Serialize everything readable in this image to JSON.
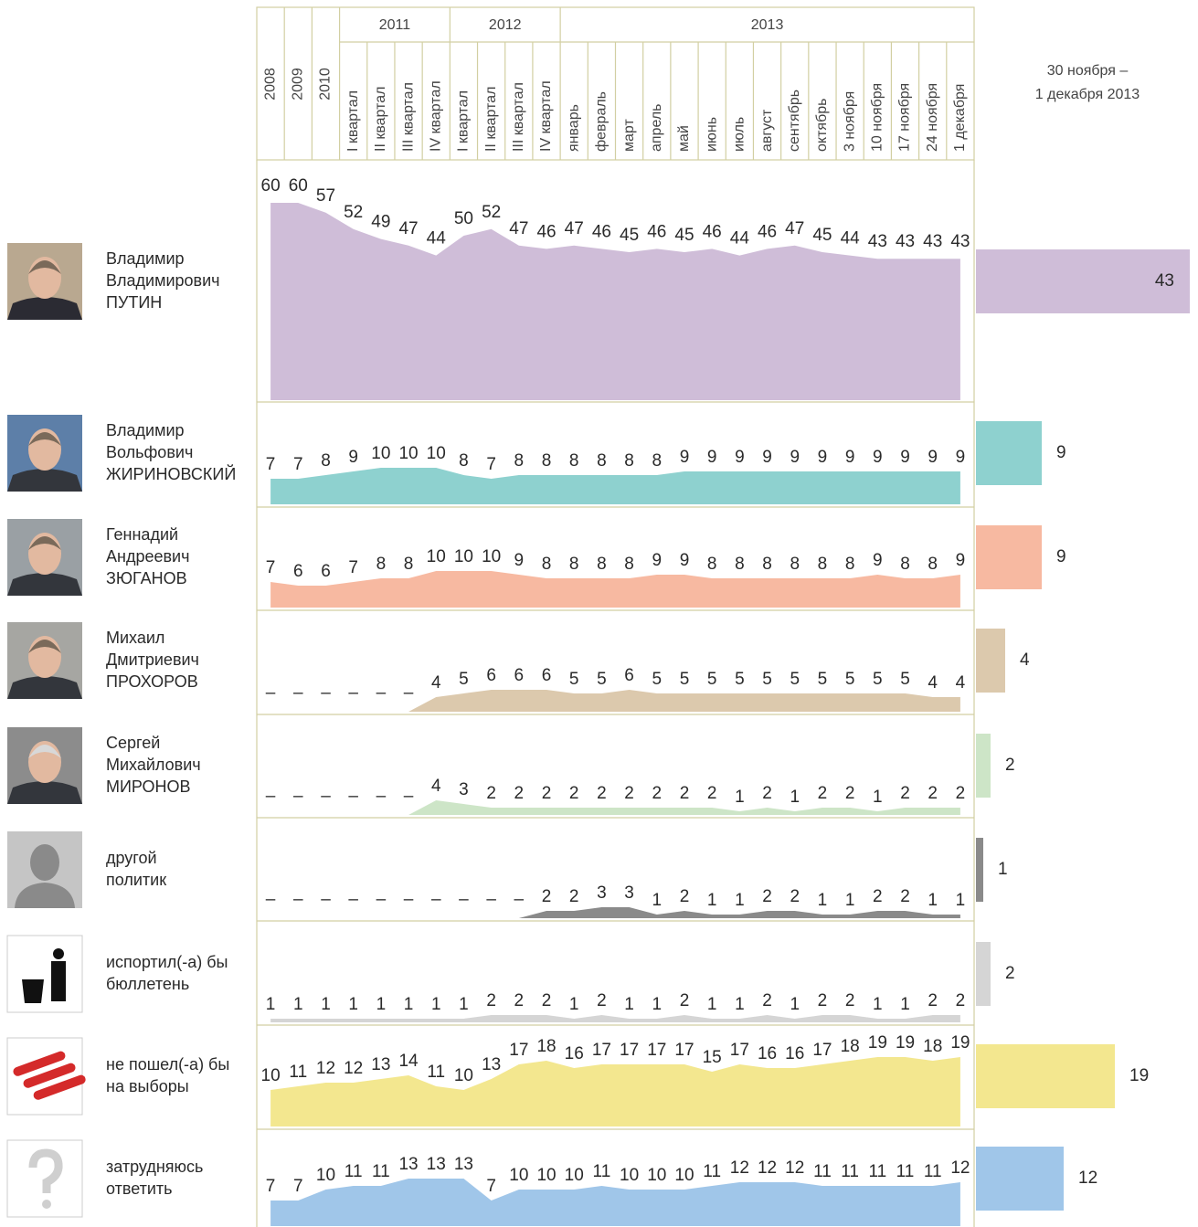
{
  "chart_data": {
    "type": "area",
    "periods": [
      {
        "label": "2008"
      },
      {
        "label": "2009"
      },
      {
        "label": "2010"
      },
      {
        "label": "2011",
        "categories": [
          "I квартал",
          "II квартал",
          "III квартал",
          "IV квартал"
        ]
      },
      {
        "label": "2012",
        "categories": [
          "I квартал",
          "II квартал",
          "III квартал",
          "IV квартал"
        ]
      },
      {
        "label": "2013",
        "categories": [
          "январь",
          "февраль",
          "март",
          "апрель",
          "май",
          "июнь",
          "июль",
          "август",
          "сентябрь",
          "октябрь",
          "3 ноября",
          "10 ноября",
          "17 ноября",
          "24 ноября",
          "1 декабря"
        ]
      }
    ],
    "final_label": [
      "30 ноября –",
      "1 декабря 2013"
    ],
    "rows": [
      {
        "name": [
          "Владимир",
          "Владимирович",
          "ПУТИН"
        ],
        "color": "#cfbdd8",
        "values": [
          60,
          60,
          57,
          52,
          49,
          47,
          44,
          50,
          52,
          47,
          46,
          47,
          46,
          45,
          46,
          45,
          46,
          44,
          46,
          47,
          45,
          44,
          43,
          43,
          43,
          43
        ],
        "final": 43
      },
      {
        "name": [
          "Владимир",
          "Вольфович",
          "ЖИРИНОВСКИЙ"
        ],
        "color": "#8ed1cf",
        "values": [
          7,
          7,
          8,
          9,
          10,
          10,
          10,
          8,
          7,
          8,
          8,
          8,
          8,
          8,
          8,
          9,
          9,
          9,
          9,
          9,
          9,
          9,
          9,
          9,
          9,
          9
        ],
        "final": 9
      },
      {
        "name": [
          "Геннадий",
          "Андреевич",
          "ЗЮГАНОВ"
        ],
        "color": "#f7b9a1",
        "values": [
          7,
          6,
          6,
          7,
          8,
          8,
          10,
          10,
          10,
          9,
          8,
          8,
          8,
          8,
          9,
          9,
          8,
          8,
          8,
          8,
          8,
          8,
          9,
          8,
          8,
          9
        ],
        "final": 9
      },
      {
        "name": [
          "Михаил",
          "Дмитриевич",
          "ПРОХОРОВ"
        ],
        "color": "#dcc9ad",
        "values": [
          null,
          null,
          null,
          null,
          null,
          null,
          4,
          5,
          6,
          6,
          6,
          5,
          5,
          6,
          5,
          5,
          5,
          5,
          5,
          5,
          5,
          5,
          5,
          5,
          4,
          4
        ],
        "value_labels": [
          "–",
          "–",
          "–",
          "–",
          "–",
          "–",
          null,
          null,
          null,
          null,
          null,
          null,
          null,
          null,
          null,
          null,
          null,
          null,
          null,
          null,
          null,
          null,
          null,
          null,
          null,
          null
        ],
        "final": 4
      },
      {
        "name": [
          "Сергей",
          "Михайлович",
          "МИРОНОВ"
        ],
        "color": "#cde5c7",
        "values": [
          null,
          null,
          null,
          null,
          null,
          null,
          4,
          3,
          2,
          2,
          2,
          2,
          2,
          2,
          2,
          2,
          2,
          1,
          2,
          1,
          2,
          2,
          1,
          2,
          2,
          2
        ],
        "value_labels": [
          "–",
          "–",
          "–",
          "–",
          "–",
          "–",
          null,
          null,
          null,
          null,
          null,
          null,
          null,
          null,
          null,
          null,
          null,
          null,
          null,
          null,
          null,
          null,
          null,
          null,
          null,
          null
        ],
        "final": 2
      },
      {
        "name": [
          "другой",
          "политик"
        ],
        "color": "#8a8a8a",
        "values": [
          null,
          null,
          null,
          null,
          null,
          null,
          null,
          null,
          null,
          null,
          2,
          2,
          3,
          3,
          1,
          2,
          1,
          1,
          2,
          2,
          1,
          1,
          2,
          2,
          1,
          1
        ],
        "value_labels": [
          "–",
          "–",
          "–",
          "–",
          "–",
          "–",
          "–",
          "–",
          "–",
          "–",
          null,
          null,
          null,
          null,
          null,
          null,
          null,
          null,
          null,
          null,
          null,
          null,
          null,
          null,
          null,
          null
        ],
        "final": 1
      },
      {
        "name": [
          "испортил(-а) бы",
          "бюллетень"
        ],
        "color": "#d5d5d5",
        "values": [
          1,
          1,
          1,
          1,
          1,
          1,
          1,
          1,
          2,
          2,
          2,
          1,
          2,
          1,
          1,
          2,
          1,
          1,
          2,
          1,
          2,
          2,
          1,
          1,
          2,
          2
        ],
        "final": 2
      },
      {
        "name": [
          "не пошел(-а) бы",
          "на выборы"
        ],
        "color": "#f3e78f",
        "values": [
          10,
          11,
          12,
          12,
          13,
          14,
          11,
          10,
          13,
          17,
          18,
          16,
          17,
          17,
          17,
          17,
          15,
          17,
          16,
          16,
          17,
          18,
          19,
          19,
          18,
          19
        ],
        "final": 19
      },
      {
        "name": [
          "затрудняюсь",
          "ответить"
        ],
        "color": "#a0c6e9",
        "values": [
          7,
          7,
          10,
          11,
          11,
          13,
          13,
          13,
          7,
          10,
          10,
          10,
          11,
          10,
          10,
          10,
          11,
          12,
          12,
          12,
          11,
          11,
          11,
          11,
          11,
          12
        ],
        "final": 12
      }
    ]
  }
}
